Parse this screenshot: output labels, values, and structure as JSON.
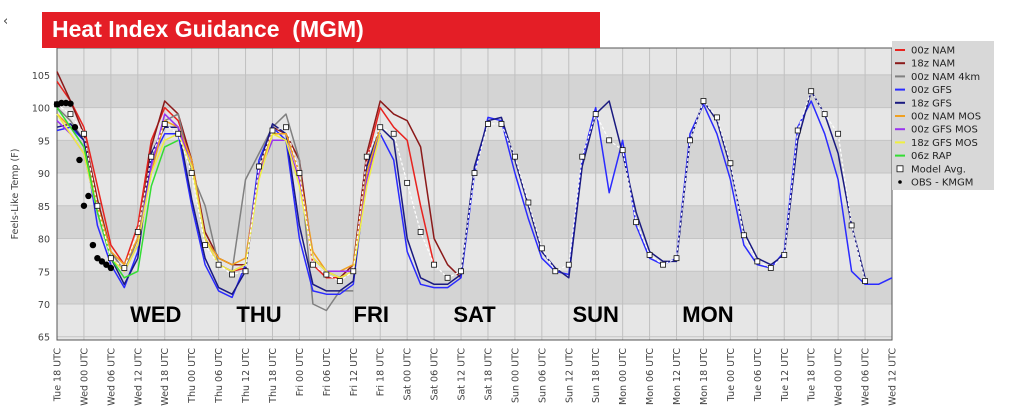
{
  "back_glyph": "‹",
  "chart_data": {
    "type": "line",
    "title": "Heat Index Guidance  (MGM)",
    "xlabel": "",
    "ylabel": "Feels-Like Temp (F)",
    "ylim": [
      64.5,
      109.1
    ],
    "yticks": [
      65,
      70,
      75,
      80,
      85,
      90,
      95,
      100,
      105
    ],
    "x_unit": "hours since Tue 18 UTC",
    "xlim": [
      0,
      186
    ],
    "xtick_labels": [
      "Tue 18 UTC",
      "Wed 00 UTC",
      "Wed 06 UTC",
      "Wed 12 UTC",
      "Wed 18 UTC",
      "Thu 00 UTC",
      "Thu 06 UTC",
      "Thu 12 UTC",
      "Thu 18 UTC",
      "Fri 00 UTC",
      "Fri 06 UTC",
      "Fri 12 UTC",
      "Fri 18 UTC",
      "Sat 00 UTC",
      "Sat 06 UTC",
      "Sat 12 UTC",
      "Sat 18 UTC",
      "Sun 00 UTC",
      "Sun 06 UTC",
      "Sun 12 UTC",
      "Sun 18 UTC",
      "Mon 00 UTC",
      "Mon 06 UTC",
      "Mon 12 UTC",
      "Mon 18 UTC",
      "Tue 00 UTC",
      "Tue 06 UTC",
      "Tue 12 UTC",
      "Tue 18 UTC",
      "Wed 00 UTC",
      "Wed 06 UTC",
      "Wed 12 UTC"
    ],
    "day_labels": [
      {
        "text": "WED",
        "hour": 22
      },
      {
        "text": "THU",
        "hour": 45
      },
      {
        "text": "FRI",
        "hour": 70
      },
      {
        "text": "SAT",
        "hour": 93
      },
      {
        "text": "SUN",
        "hour": 120
      },
      {
        "text": "MON",
        "hour": 145
      }
    ],
    "grid": true,
    "legend_position": "right",
    "series": [
      {
        "name": "00z NAM",
        "color": "#e8231f",
        "start": 0,
        "step": 3,
        "values": [
          104,
          101,
          97,
          88,
          79,
          76,
          82,
          95,
          100,
          98,
          92,
          80,
          76,
          75,
          75.5,
          90,
          96,
          96,
          90,
          76,
          74,
          74,
          75,
          92,
          100,
          97,
          95,
          85,
          76
        ]
      },
      {
        "name": "18z NAM",
        "color": "#8b1a1a",
        "start": 0,
        "step": 3,
        "values": [
          105.5,
          101,
          96,
          86,
          78,
          75,
          80,
          94,
          101,
          99,
          92,
          81,
          77,
          76,
          76,
          91,
          97,
          96,
          92,
          77,
          75,
          74,
          76,
          93,
          101,
          99,
          98,
          94,
          80,
          76,
          74
        ]
      },
      {
        "name": "00z NAM 4km",
        "color": "#808080",
        "start": 0,
        "step": 3,
        "values": [
          100,
          98,
          95,
          85,
          78,
          75,
          80,
          92,
          98,
          99,
          90,
          85,
          76,
          75,
          89,
          93,
          97,
          99,
          92,
          70,
          69,
          72,
          72
        ]
      },
      {
        "name": "00z GFS",
        "color": "#2b2bff",
        "start": 0,
        "step": 3,
        "values": [
          96.5,
          97,
          95,
          82,
          76,
          72.5,
          78,
          92,
          96,
          96,
          85,
          76,
          72,
          71,
          76,
          92,
          97,
          95,
          80,
          72,
          71.5,
          71.5,
          73,
          90,
          96,
          92,
          78,
          73,
          72.5,
          72.5,
          74,
          90,
          98.5,
          98,
          90,
          83,
          77,
          75,
          74.5,
          92,
          100,
          87,
          95,
          82,
          77,
          76,
          77,
          96,
          100.5,
          96,
          89,
          79,
          76,
          75.5,
          78,
          97,
          101,
          96,
          89,
          75,
          73,
          73,
          74
        ]
      },
      {
        "name": "18z GFS",
        "color": "#1a1a80",
        "start": 0,
        "step": 3,
        "values": [
          97,
          97.5,
          95,
          84,
          77,
          73,
          77,
          93,
          97,
          97,
          86,
          77,
          72.5,
          71.5,
          75,
          91,
          97.5,
          96,
          82,
          73,
          72,
          72,
          73.5,
          91,
          97,
          95,
          80,
          74,
          73,
          73,
          74.5,
          91,
          98,
          98.5,
          92,
          85,
          78,
          75.5,
          74,
          91,
          99,
          101,
          93,
          84,
          78,
          76.5,
          76.5,
          95,
          101,
          98,
          91,
          81,
          77,
          76,
          77.5,
          95,
          102.5,
          99,
          93,
          82,
          74
        ]
      },
      {
        "name": "00z NAM MOS",
        "color": "#f0a020",
        "start": 0,
        "step": 3,
        "values": [
          99,
          97,
          94,
          85,
          78,
          76,
          80,
          90,
          98,
          97,
          92,
          80,
          77,
          76,
          77,
          90,
          96,
          96,
          90,
          78,
          75,
          75,
          76,
          90,
          97
        ]
      },
      {
        "name": "00z GFS MOS",
        "color": "#9933ee",
        "start": 0,
        "step": 3,
        "values": [
          98,
          96,
          93,
          84,
          77,
          75,
          79,
          91,
          99,
          97,
          91,
          80,
          76,
          75,
          76,
          90,
          95,
          95,
          89,
          77,
          75,
          75,
          75,
          89,
          96
        ]
      },
      {
        "name": "18z GFS MOS",
        "color": "#f0f040",
        "start": 0,
        "step": 3,
        "values": [
          99,
          96,
          93,
          84,
          77,
          75,
          79,
          90,
          95,
          96,
          91,
          80,
          76,
          75,
          76,
          89,
          96,
          95,
          88,
          77,
          75,
          74,
          75,
          88,
          96
        ]
      },
      {
        "name": "06z RAP",
        "color": "#33dd33",
        "start": 0,
        "step": 3,
        "values": [
          100,
          97,
          94,
          84,
          77,
          74,
          75,
          88,
          94,
          95
        ]
      },
      {
        "name": "Model Avg.",
        "color": "#ffffff",
        "start": 0,
        "step": 3,
        "marker": "square",
        "values": [
          100.5,
          99,
          96,
          85,
          77,
          75.5,
          81,
          92.5,
          97.5,
          96,
          90,
          79,
          76,
          74.5,
          75,
          91,
          96.5,
          97,
          90,
          76,
          74.5,
          73.5,
          75,
          92.5,
          97,
          96,
          88.5,
          81,
          76,
          74,
          75,
          90,
          97.5,
          97.5,
          92.5,
          85.5,
          78.5,
          75,
          76,
          92.5,
          99,
          95,
          93.5,
          82.5,
          77.5,
          76,
          77,
          95,
          101,
          98.5,
          91.5,
          80.5,
          76.5,
          75.5,
          77.5,
          96.5,
          102.5,
          99,
          96,
          82,
          73.5
        ]
      },
      {
        "name": "OBS - KMGM",
        "color": "#000000",
        "marker": "diamond",
        "points": [
          [
            0,
            100.5
          ],
          [
            1,
            100.7
          ],
          [
            2,
            100.7
          ],
          [
            3,
            100.6
          ],
          [
            4,
            97
          ],
          [
            5,
            92
          ],
          [
            6,
            85
          ],
          [
            7,
            86.5
          ],
          [
            8,
            79
          ],
          [
            9,
            77
          ],
          [
            10,
            76.5
          ],
          [
            11,
            76
          ],
          [
            12,
            75.5
          ]
        ]
      }
    ]
  }
}
